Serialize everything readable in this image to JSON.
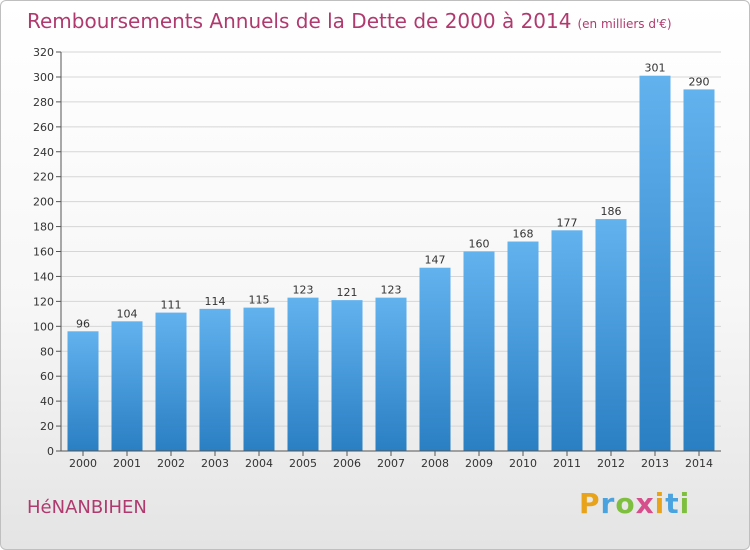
{
  "header": {
    "title": "Remboursements Annuels de la Dette de 2000 à 2014",
    "subtitle": "(en milliers d'€)"
  },
  "footer": {
    "commune": "HéNANBIHEN",
    "logo_letters": [
      "P",
      "r",
      "o",
      "x",
      "i",
      "t",
      "i"
    ],
    "logo_colors": [
      "#e8a31b",
      "#4aa3df",
      "#7fbf3f",
      "#d64f8c",
      "#e8a31b",
      "#4aa3df",
      "#7fbf3f"
    ]
  },
  "colors": {
    "bar_top": "#62b2ee",
    "bar_bottom": "#2a7fc3",
    "grid": "#d6d6d6",
    "axis": "#555555"
  },
  "chart_data": {
    "type": "bar",
    "title": "Remboursements Annuels de la Dette de 2000 à 2014",
    "ylabel": "",
    "xlabel": "",
    "ylim": [
      0,
      320
    ],
    "ytick_step": 20,
    "categories": [
      "2000",
      "2001",
      "2002",
      "2003",
      "2004",
      "2005",
      "2006",
      "2007",
      "2008",
      "2009",
      "2010",
      "2011",
      "2012",
      "2013",
      "2014"
    ],
    "values": [
      96,
      104,
      111,
      114,
      115,
      123,
      121,
      123,
      147,
      160,
      168,
      177,
      186,
      301,
      290
    ],
    "grid": true
  }
}
